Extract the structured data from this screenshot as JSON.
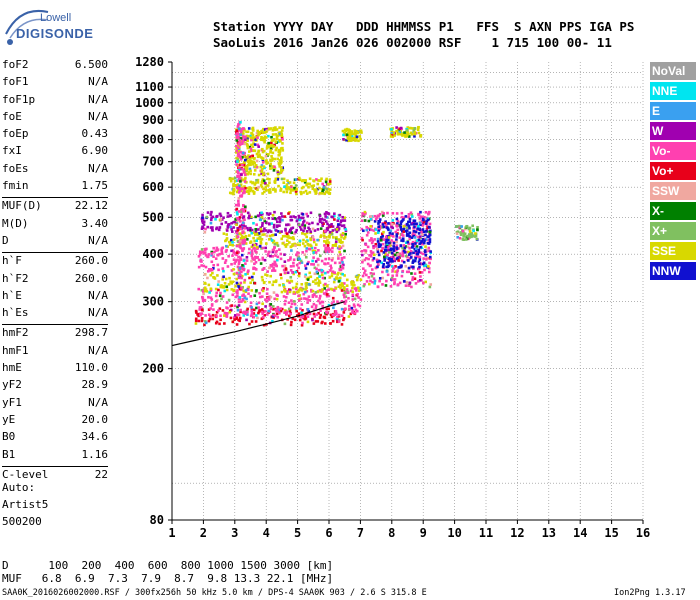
{
  "logo": {
    "line1": "Lowell",
    "line2": "DIGISONDE"
  },
  "header": {
    "row1": "Station YYYY DAY   DDD HHMMSS P1   FFS  S AXN PPS IGA PS",
    "row2": "SaoLuis 2016 Jan26 026 002000 RSF    1 715 100 00- 11"
  },
  "params": {
    "group1": [
      {
        "label": "foF2",
        "value": "6.500"
      },
      {
        "label": "foF1",
        "value": "N/A"
      },
      {
        "label": "foF1p",
        "value": "N/A"
      },
      {
        "label": "foE",
        "value": "N/A"
      },
      {
        "label": "foEp",
        "value": "0.43"
      },
      {
        "label": "fxI",
        "value": "6.90"
      },
      {
        "label": "foEs",
        "value": "N/A"
      },
      {
        "label": "fmin",
        "value": "1.75"
      }
    ],
    "group2": [
      {
        "label": "MUF(D)",
        "value": "22.12"
      },
      {
        "label": "M(D)",
        "value": "3.40"
      },
      {
        "label": "D",
        "value": "N/A"
      }
    ],
    "group3": [
      {
        "label": "h`F",
        "value": "260.0"
      },
      {
        "label": "h`F2",
        "value": "260.0"
      },
      {
        "label": "h`E",
        "value": "N/A"
      },
      {
        "label": "h`Es",
        "value": "N/A"
      }
    ],
    "group4": [
      {
        "label": "hmF2",
        "value": "298.7"
      },
      {
        "label": "hmF1",
        "value": "N/A"
      },
      {
        "label": "hmE",
        "value": "110.0"
      },
      {
        "label": "yF2",
        "value": "28.9"
      },
      {
        "label": "yF1",
        "value": "N/A"
      },
      {
        "label": "yE",
        "value": "20.0"
      },
      {
        "label": "B0",
        "value": "34.6"
      },
      {
        "label": "B1",
        "value": "1.16"
      }
    ],
    "group5": [
      {
        "label": "C-level",
        "value": "22"
      }
    ]
  },
  "auto": {
    "line1": "Auto:",
    "line2": "Artist5",
    "line3": "500200"
  },
  "legend": [
    {
      "label": "NoVal",
      "color": "#a0a0a0"
    },
    {
      "label": "NNE",
      "color": "#00e5f0"
    },
    {
      "label": "E",
      "color": "#3aa0f0"
    },
    {
      "label": "W",
      "color": "#a000b0"
    },
    {
      "label": "Vo-",
      "color": "#ff40b0"
    },
    {
      "label": "Vo+",
      "color": "#e8001a"
    },
    {
      "label": "SSW",
      "color": "#f0a8a0"
    },
    {
      "label": "X-",
      "color": "#008000"
    },
    {
      "label": "X+",
      "color": "#80c060"
    },
    {
      "label": "SSE",
      "color": "#d8d800"
    },
    {
      "label": "NNW",
      "color": "#1010d0"
    }
  ],
  "footer": {
    "d_row": "D      100  200  400  600  800 1000 1500 3000 [km]",
    "muf_row": "MUF   6.8  6.9  7.3  7.9  8.7  9.8 13.3 22.1 [MHz]",
    "filename": "SAA0K_2016026002000.RSF / 300fx256h 50 kHz 5.0 km / DPS-4 SAA0K 903 / 2.6 S 315.8 E",
    "version": "Ion2Png 1.3.17"
  },
  "chart_data": {
    "type": "scatter",
    "title": "",
    "xlabel": "",
    "ylabel": "",
    "xlim": [
      1,
      16
    ],
    "ylim": [
      80,
      1280
    ],
    "yscale": "log",
    "grid": true,
    "x_ticks": [
      1,
      2,
      3,
      4,
      5,
      6,
      7,
      8,
      9,
      10,
      11,
      12,
      13,
      14,
      15,
      16
    ],
    "y_ticks": [
      80,
      200,
      300,
      400,
      500,
      600,
      700,
      800,
      900,
      1000,
      1100,
      1280
    ],
    "profile_curve": {
      "name": "",
      "x": [
        1.0,
        1.5,
        2.0,
        3.0,
        4.0,
        5.0,
        6.0,
        6.5
      ],
      "y": [
        230,
        235,
        240,
        250,
        262,
        275,
        292,
        300
      ]
    },
    "echo_regions": [
      {
        "series": "Vo+",
        "x": [
          1.7,
          6.8
        ],
        "y": [
          262,
          290
        ]
      },
      {
        "series": "Vo-",
        "x": [
          1.8,
          7.0
        ],
        "y": [
          275,
          330
        ]
      },
      {
        "series": "SSE",
        "x": [
          2.0,
          7.0
        ],
        "y": [
          320,
          360
        ]
      },
      {
        "series": "Vo-",
        "x": [
          1.8,
          6.5
        ],
        "y": [
          360,
          420
        ]
      },
      {
        "series": "SSE",
        "x": [
          2.5,
          6.5
        ],
        "y": [
          420,
          460
        ]
      },
      {
        "series": "W",
        "x": [
          1.9,
          6.5
        ],
        "y": [
          460,
          520
        ]
      },
      {
        "series": "SSE",
        "x": [
          2.8,
          6.0
        ],
        "y": [
          580,
          640
        ]
      },
      {
        "series": "SSE",
        "x": [
          3.0,
          4.5
        ],
        "y": [
          650,
          870
        ]
      },
      {
        "series": "SSE",
        "x": [
          6.4,
          7.0
        ],
        "y": [
          800,
          860
        ]
      },
      {
        "series": "SSE",
        "x": [
          7.9,
          8.9
        ],
        "y": [
          820,
          870
        ]
      },
      {
        "series": "Vo-",
        "x": [
          7.0,
          9.2
        ],
        "y": [
          330,
          520
        ]
      },
      {
        "series": "NNW",
        "x": [
          7.5,
          9.2
        ],
        "y": [
          370,
          500
        ]
      },
      {
        "series": "X+",
        "x": [
          10.0,
          10.7
        ],
        "y": [
          440,
          480
        ]
      },
      {
        "series": "Vo-",
        "x": [
          3.0,
          3.3
        ],
        "y": [
          300,
          900
        ]
      }
    ]
  }
}
